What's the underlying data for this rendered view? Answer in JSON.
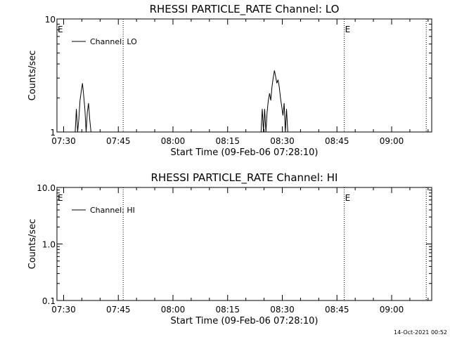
{
  "colors": {
    "background": "#ffffff",
    "foreground": "#000000"
  },
  "footer": {
    "timestamp": "14-Oct-2021 00:52"
  },
  "chart_data": [
    {
      "type": "line",
      "title": "RHESSI PARTICLE_RATE Channel: LO",
      "xlabel": "Start Time (09-Feb-06 07:28:10)",
      "ylabel": "Counts/sec",
      "yscale": "log",
      "xlim": [
        "07:28:10",
        "09:11:00"
      ],
      "ylim": [
        1,
        10
      ],
      "xticks": [
        "07:30",
        "07:45",
        "08:00",
        "08:15",
        "08:30",
        "08:45",
        "09:00"
      ],
      "yticks": [
        "1",
        "10"
      ],
      "legend": {
        "position": "top-left",
        "entries": [
          "Channel: LO"
        ]
      },
      "annotations": [
        {
          "text": "E",
          "x": "07:28:10"
        },
        {
          "text": "E",
          "x": "08:47:00"
        }
      ],
      "vlines": [
        "07:46:20",
        "08:47:00",
        "09:09:30"
      ],
      "series": [
        {
          "name": "Channel: LO",
          "points": [
            [
              "07:33:10",
              1
            ],
            [
              "07:33:30",
              1.6
            ],
            [
              "07:33:50",
              1
            ],
            [
              "07:34:10",
              1.3
            ],
            [
              "07:34:30",
              1.9
            ],
            [
              "07:34:50",
              2.3
            ],
            [
              "07:35:10",
              2.7
            ],
            [
              "07:35:30",
              2.1
            ],
            [
              "07:35:50",
              1.6
            ],
            [
              "07:36:10",
              1
            ],
            [
              "07:36:30",
              1.5
            ],
            [
              "07:36:50",
              1.8
            ],
            [
              "07:37:10",
              1.3
            ],
            [
              "07:37:30",
              1
            ],
            [
              "08:24:10",
              1
            ],
            [
              "08:24:30",
              1.6
            ],
            [
              "08:24:50",
              1
            ],
            [
              "08:25:10",
              1.6
            ],
            [
              "08:25:30",
              1
            ],
            [
              "08:25:50",
              1.5
            ],
            [
              "08:26:10",
              1.9
            ],
            [
              "08:26:30",
              2.2
            ],
            [
              "08:26:50",
              1.9
            ],
            [
              "08:27:10",
              2.5
            ],
            [
              "08:27:30",
              3.0
            ],
            [
              "08:27:50",
              3.5
            ],
            [
              "08:28:10",
              3.1
            ],
            [
              "08:28:30",
              2.7
            ],
            [
              "08:28:50",
              2.9
            ],
            [
              "08:29:10",
              2.5
            ],
            [
              "08:29:30",
              2.0
            ],
            [
              "08:29:50",
              1.7
            ],
            [
              "08:30:10",
              1.4
            ],
            [
              "08:30:30",
              1.8
            ],
            [
              "08:30:50",
              1
            ],
            [
              "08:31:10",
              1.6
            ],
            [
              "08:31:30",
              1
            ]
          ]
        }
      ]
    },
    {
      "type": "line",
      "title": "RHESSI PARTICLE_RATE Channel: HI",
      "xlabel": "Start Time (09-Feb-06 07:28:10)",
      "ylabel": "Counts/sec",
      "yscale": "log",
      "xlim": [
        "07:28:10",
        "09:11:00"
      ],
      "ylim": [
        0.1,
        10
      ],
      "xticks": [
        "07:30",
        "07:45",
        "08:00",
        "08:15",
        "08:30",
        "08:45",
        "09:00"
      ],
      "yticks": [
        "0.1",
        "1.0",
        "10.0"
      ],
      "legend": {
        "position": "top-left",
        "entries": [
          "Channel: HI"
        ]
      },
      "annotations": [
        {
          "text": "E",
          "x": "07:28:10"
        },
        {
          "text": "E",
          "x": "08:47:00"
        }
      ],
      "vlines": [
        "07:46:20",
        "08:47:00",
        "09:09:30"
      ],
      "series": [
        {
          "name": "Channel: HI",
          "points": []
        }
      ]
    }
  ]
}
